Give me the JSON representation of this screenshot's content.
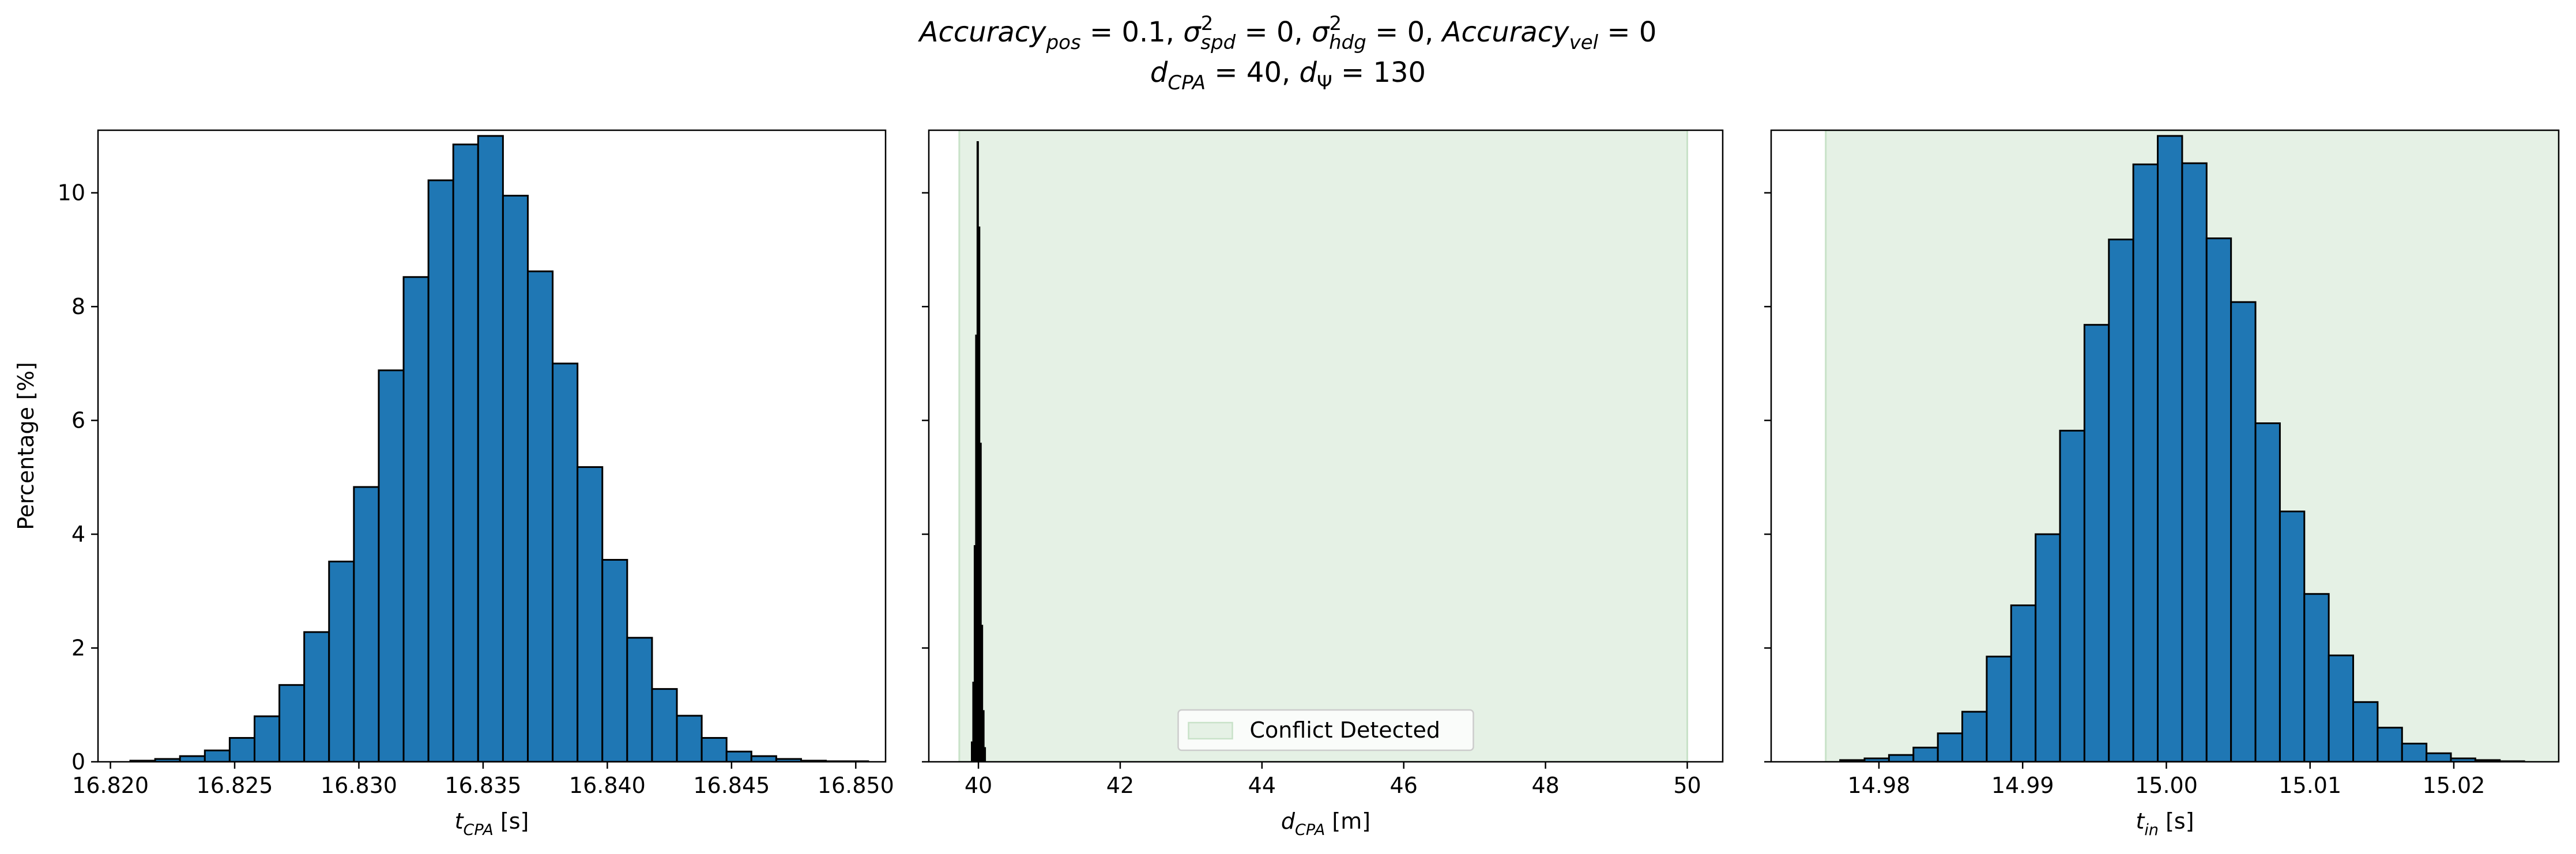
{
  "figure": {
    "title_lines": [
      [
        {
          "t": "Accuracy",
          "s": "i"
        },
        {
          "t": "pos",
          "s": "isub"
        },
        {
          "t": " = 0.1, ",
          "s": "n"
        },
        {
          "t": "σ",
          "s": "i"
        },
        {
          "t": "2",
          "s": "sup"
        },
        {
          "t": "spd",
          "s": "isub"
        },
        {
          "t": " = 0, ",
          "s": "n"
        },
        {
          "t": "σ",
          "s": "i"
        },
        {
          "t": "2",
          "s": "sup"
        },
        {
          "t": "hdg",
          "s": "isub"
        },
        {
          "t": " = 0, ",
          "s": "n"
        },
        {
          "t": "Accuracy",
          "s": "i"
        },
        {
          "t": "vel",
          "s": "isub"
        },
        {
          "t": " = 0",
          "s": "n"
        }
      ],
      [
        {
          "t": "d",
          "s": "i"
        },
        {
          "t": "CPA",
          "s": "isub"
        },
        {
          "t": " = 40, ",
          "s": "n"
        },
        {
          "t": "d",
          "s": "i"
        },
        {
          "t": "Ψ",
          "s": "sub"
        },
        {
          "t": " = 130",
          "s": "n"
        }
      ]
    ]
  },
  "colors": {
    "bar_fill": "#1f77b4",
    "bar_edge": "#000000",
    "conflict_fill": "#e5f1e5",
    "conflict_edge": "#c8e2c8",
    "narrow_bar": "#000000"
  },
  "chart_data": [
    {
      "type": "bar",
      "title": "",
      "xlabel": "t_CPA [s]",
      "xlabel_parts": [
        {
          "t": "t",
          "s": "i"
        },
        {
          "t": "CPA",
          "s": "isub"
        },
        {
          "t": " [s]",
          "s": "n"
        }
      ],
      "ylabel": "Percentage [%]",
      "xlim": [
        16.8195,
        16.8512
      ],
      "ylim": [
        0,
        11.1
      ],
      "xticks": [
        16.82,
        16.825,
        16.83,
        16.835,
        16.84,
        16.845,
        16.85
      ],
      "xtick_labels": [
        "16.820",
        "16.825",
        "16.830",
        "16.835",
        "16.840",
        "16.845",
        "16.850"
      ],
      "yticks": [
        0,
        2,
        4,
        6,
        8,
        10
      ],
      "ytick_labels": [
        "0",
        "2",
        "4",
        "6",
        "8",
        "10"
      ],
      "show_ytick_labels": true,
      "bin_edges": [
        16.8208,
        16.8218,
        16.8228,
        16.8238,
        16.8248,
        16.8258,
        16.8268,
        16.8278,
        16.8288,
        16.8298,
        16.8308,
        16.8318,
        16.8328,
        16.8338,
        16.8348,
        16.8358,
        16.8368,
        16.8378,
        16.8388,
        16.8398,
        16.8408,
        16.8418,
        16.8428,
        16.8438,
        16.8448,
        16.8458,
        16.8468,
        16.8478,
        16.8488,
        16.8498,
        16.8505
      ],
      "values": [
        0.02,
        0.05,
        0.1,
        0.2,
        0.42,
        0.8,
        1.35,
        2.28,
        3.52,
        4.83,
        6.88,
        8.52,
        10.22,
        10.85,
        11.0,
        9.95,
        8.62,
        7.0,
        5.18,
        3.55,
        2.18,
        1.28,
        0.81,
        0.42,
        0.18,
        0.1,
        0.05,
        0.02,
        0.01,
        0.01
      ],
      "grid": false
    },
    {
      "type": "bar",
      "title": "",
      "xlabel": "d_CPA [m]",
      "xlabel_parts": [
        {
          "t": "d",
          "s": "i"
        },
        {
          "t": "CPA",
          "s": "isub"
        },
        {
          "t": " [m]",
          "s": "n"
        }
      ],
      "ylabel": "",
      "xlim": [
        39.3,
        50.5
      ],
      "ylim": [
        0,
        11.1
      ],
      "xticks": [
        40,
        42,
        44,
        46,
        48,
        50
      ],
      "xtick_labels": [
        "40",
        "42",
        "44",
        "46",
        "48",
        "50"
      ],
      "yticks": [
        0,
        2,
        4,
        6,
        8,
        10
      ],
      "ytick_labels": [
        "0",
        "2",
        "4",
        "6",
        "8",
        "10"
      ],
      "show_ytick_labels": false,
      "shaded_region": {
        "x0": 39.73,
        "x1": 50.0,
        "label": "Conflict Detected"
      },
      "bin_edges": [
        39.9,
        39.92,
        39.94,
        39.96,
        39.98,
        40.0,
        40.02,
        40.04,
        40.06,
        40.08,
        40.1
      ],
      "values": [
        0.35,
        1.4,
        3.8,
        7.5,
        10.9,
        9.4,
        5.6,
        2.4,
        0.9,
        0.25
      ],
      "legend": {
        "position": "lower-center",
        "entries": [
          "Conflict Detected"
        ]
      },
      "grid": false
    },
    {
      "type": "bar",
      "title": "",
      "xlabel": "t_in [s]",
      "xlabel_parts": [
        {
          "t": "t",
          "s": "i"
        },
        {
          "t": "in",
          "s": "isub"
        },
        {
          "t": " [s]",
          "s": "n"
        }
      ],
      "ylabel": "",
      "xlim": [
        14.9725,
        15.0273
      ],
      "ylim": [
        0,
        11.1
      ],
      "xticks": [
        14.98,
        14.99,
        15.0,
        15.01,
        15.02
      ],
      "xtick_labels": [
        "14.98",
        "14.99",
        "15.00",
        "15.01",
        "15.02"
      ],
      "yticks": [
        0,
        2,
        4,
        6,
        8,
        10
      ],
      "ytick_labels": [
        "0",
        "2",
        "4",
        "6",
        "8",
        "10"
      ],
      "show_ytick_labels": false,
      "shaded_region": {
        "x0": 14.9763,
        "x1": 15.0273,
        "label": "Conflict Detected"
      },
      "bin_edges": [
        14.9773,
        14.979,
        14.9807,
        14.9824,
        14.9841,
        14.9858,
        14.9875,
        14.9892,
        14.9909,
        14.9926,
        14.9943,
        14.996,
        14.9977,
        14.9994,
        15.0011,
        15.0028,
        15.0045,
        15.0062,
        15.0079,
        15.0096,
        15.0113,
        15.013,
        15.0147,
        15.0164,
        15.0181,
        15.0198,
        15.0215,
        15.0232,
        15.0249
      ],
      "values": [
        0.03,
        0.06,
        0.12,
        0.25,
        0.5,
        0.88,
        1.85,
        2.75,
        4.0,
        5.82,
        7.68,
        9.18,
        10.5,
        11.0,
        10.52,
        9.2,
        8.08,
        5.95,
        4.4,
        2.95,
        1.87,
        1.05,
        0.6,
        0.32,
        0.15,
        0.06,
        0.03,
        0.01
      ],
      "grid": false
    }
  ]
}
